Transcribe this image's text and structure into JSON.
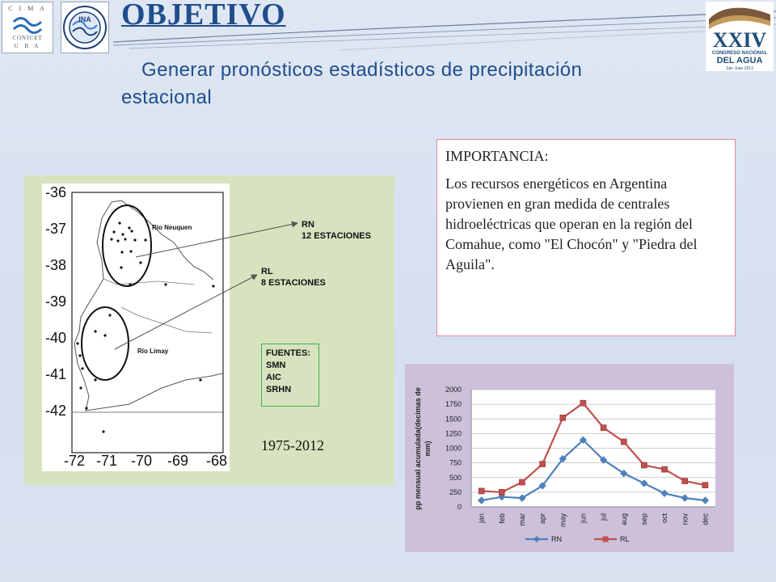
{
  "header": {
    "title": "OBJETIVO",
    "subtitle_line1": "Generar pronósticos estadísticos de precipitación",
    "subtitle_line2": "estacional"
  },
  "logos": {
    "cima_text_top": "C I M A",
    "cima_text_bottom": "CONICET",
    "cima_text_uba": "U B A",
    "inst_text": "INA",
    "congress_number": "XXIV",
    "congress_line1": "CONGRESO NACIONAL",
    "congress_line2": "DEL AGUA",
    "congress_place": "San Juan 2013"
  },
  "map": {
    "lat_labels": [
      "-36",
      "-37",
      "-38",
      "-39",
      "-40",
      "-41",
      "-42"
    ],
    "lon_labels": [
      "-72",
      "-71",
      "-70",
      "-69",
      "-68"
    ],
    "river_neuquen": "Río Neuquen",
    "river_limay": "Río Limay",
    "rn_label": "RN",
    "rn_stations": "12 ESTACIONES",
    "rl_label": "RL",
    "rl_stations": "8 ESTACIONES",
    "sources_title": "FUENTES:",
    "sources": [
      "SMN",
      "AIC",
      "SRHN"
    ],
    "period": "1975-2012"
  },
  "importance": {
    "title": "IMPORTANCIA:",
    "body": "Los recursos energéticos en Argentina provienen en gran medida de centrales hidroeléctricas que operan en la región del Comahue, como \"El Chocón\" y \"Piedra del Aguila\"."
  },
  "colors": {
    "title": "#1f4e8c",
    "rn_series": "#4f81bd",
    "rl_series": "#c0504d",
    "map_panel": "#d7e3bf",
    "chart_panel": "#ccc0da"
  },
  "chart_data": {
    "type": "line",
    "categories": [
      "jan",
      "feb",
      "mar",
      "apr",
      "may",
      "jun",
      "jul",
      "aug",
      "sep",
      "oct",
      "nov",
      "dec"
    ],
    "series": [
      {
        "name": "RN",
        "values": [
          110,
          170,
          150,
          360,
          820,
          1140,
          800,
          570,
          400,
          230,
          150,
          110
        ]
      },
      {
        "name": "RL",
        "values": [
          270,
          250,
          420,
          730,
          1520,
          1770,
          1350,
          1110,
          710,
          640,
          440,
          370
        ]
      }
    ],
    "title": "",
    "xlabel": "",
    "ylabel": "pp mensual acumulada(decimas de mm)",
    "ylim": [
      0,
      2000
    ],
    "yticks": [
      "0",
      "250",
      "500",
      "750",
      "1000",
      "1250",
      "1500",
      "1750",
      "2000"
    ],
    "grid": true,
    "legend": "bottom"
  }
}
